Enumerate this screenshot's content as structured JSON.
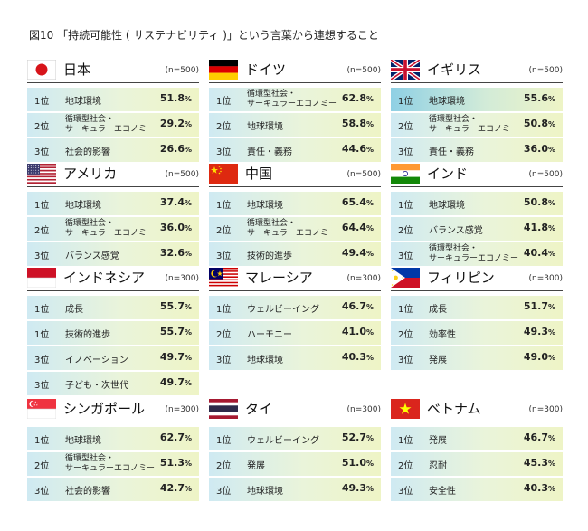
{
  "title": "図10 「持続可能性 ( サステナビリティ )」という言葉から連想すること",
  "chart_data": {
    "type": "table",
    "unit": "%",
    "countries": [
      {
        "name": "日本",
        "flag": "japan",
        "n": "(n=500)",
        "items": [
          {
            "rank": "1位",
            "label": "地球環境",
            "value": 51.8
          },
          {
            "rank": "2位",
            "label": "循環型社会・\nサーキュラーエコノミー",
            "value": 29.2
          },
          {
            "rank": "3位",
            "label": "社会的影響",
            "value": 26.6
          }
        ]
      },
      {
        "name": "ドイツ",
        "flag": "germany",
        "n": "(n=500)",
        "items": [
          {
            "rank": "1位",
            "label": "循環型社会・\nサーキュラーエコノミー",
            "value": 62.8
          },
          {
            "rank": "2位",
            "label": "地球環境",
            "value": 58.8
          },
          {
            "rank": "3位",
            "label": "責任・義務",
            "value": 44.6
          }
        ]
      },
      {
        "name": "イギリス",
        "flag": "uk",
        "n": "(n=500)",
        "items": [
          {
            "rank": "1位",
            "label": "地球環境",
            "value": 55.6
          },
          {
            "rank": "2位",
            "label": "循環型社会・\nサーキュラーエコノミー",
            "value": 50.8
          },
          {
            "rank": "3位",
            "label": "責任・義務",
            "value": 36.0
          }
        ]
      },
      {
        "name": "アメリカ",
        "flag": "usa",
        "n": "(n=500)",
        "items": [
          {
            "rank": "1位",
            "label": "地球環境",
            "value": 37.4
          },
          {
            "rank": "2位",
            "label": "循環型社会・\nサーキュラーエコノミー",
            "value": 36.0
          },
          {
            "rank": "3位",
            "label": "バランス感覚",
            "value": 32.6
          }
        ]
      },
      {
        "name": "中国",
        "flag": "china",
        "n": "(n=500)",
        "items": [
          {
            "rank": "1位",
            "label": "地球環境",
            "value": 65.4
          },
          {
            "rank": "2位",
            "label": "循環型社会・\nサーキュラーエコノミー",
            "value": 64.4
          },
          {
            "rank": "3位",
            "label": "技術的進歩",
            "value": 49.4
          }
        ]
      },
      {
        "name": "インド",
        "flag": "india",
        "n": "(n=500)",
        "items": [
          {
            "rank": "1位",
            "label": "地球環境",
            "value": 50.8
          },
          {
            "rank": "2位",
            "label": "バランス感覚",
            "value": 41.8
          },
          {
            "rank": "3位",
            "label": "循環型社会・\nサーキュラーエコノミー",
            "value": 40.4
          }
        ]
      },
      {
        "name": "インドネシア",
        "flag": "indonesia",
        "n": "(n=300)",
        "items": [
          {
            "rank": "1位",
            "label": "成長",
            "value": 55.7
          },
          {
            "rank": "1位",
            "label": "技術的進歩",
            "value": 55.7
          },
          {
            "rank": "3位",
            "label": "イノベーション",
            "value": 49.7
          },
          {
            "rank": "3位",
            "label": "子ども・次世代",
            "value": 49.7
          }
        ]
      },
      {
        "name": "マレーシア",
        "flag": "malaysia",
        "n": "(n=300)",
        "items": [
          {
            "rank": "1位",
            "label": "ウェルビーイング",
            "value": 46.7
          },
          {
            "rank": "2位",
            "label": "ハーモニー",
            "value": 41.0
          },
          {
            "rank": "3位",
            "label": "地球環境",
            "value": 40.3
          }
        ]
      },
      {
        "name": "フィリピン",
        "flag": "philippines",
        "n": "(n=300)",
        "items": [
          {
            "rank": "1位",
            "label": "成長",
            "value": 51.7
          },
          {
            "rank": "2位",
            "label": "効率性",
            "value": 49.3
          },
          {
            "rank": "3位",
            "label": "発展",
            "value": 49.0
          }
        ]
      },
      {
        "name": "シンガポール",
        "flag": "singapore",
        "n": "(n=300)",
        "items": [
          {
            "rank": "1位",
            "label": "地球環境",
            "value": 62.7
          },
          {
            "rank": "2位",
            "label": "循環型社会・\nサーキュラーエコノミー",
            "value": 51.3
          },
          {
            "rank": "3位",
            "label": "社会的影響",
            "value": 42.7
          }
        ]
      },
      {
        "name": "タイ",
        "flag": "thailand",
        "n": "(n=300)",
        "items": [
          {
            "rank": "1位",
            "label": "ウェルビーイング",
            "value": 52.7
          },
          {
            "rank": "2位",
            "label": "発展",
            "value": 51.0
          },
          {
            "rank": "3位",
            "label": "地球環境",
            "value": 49.3
          }
        ]
      },
      {
        "name": "ベトナム",
        "flag": "vietnam",
        "n": "(n=300)",
        "items": [
          {
            "rank": "1位",
            "label": "発展",
            "value": 46.7
          },
          {
            "rank": "2位",
            "label": "忍耐",
            "value": 45.3
          },
          {
            "rank": "3位",
            "label": "安全性",
            "value": 40.3
          }
        ]
      }
    ]
  }
}
